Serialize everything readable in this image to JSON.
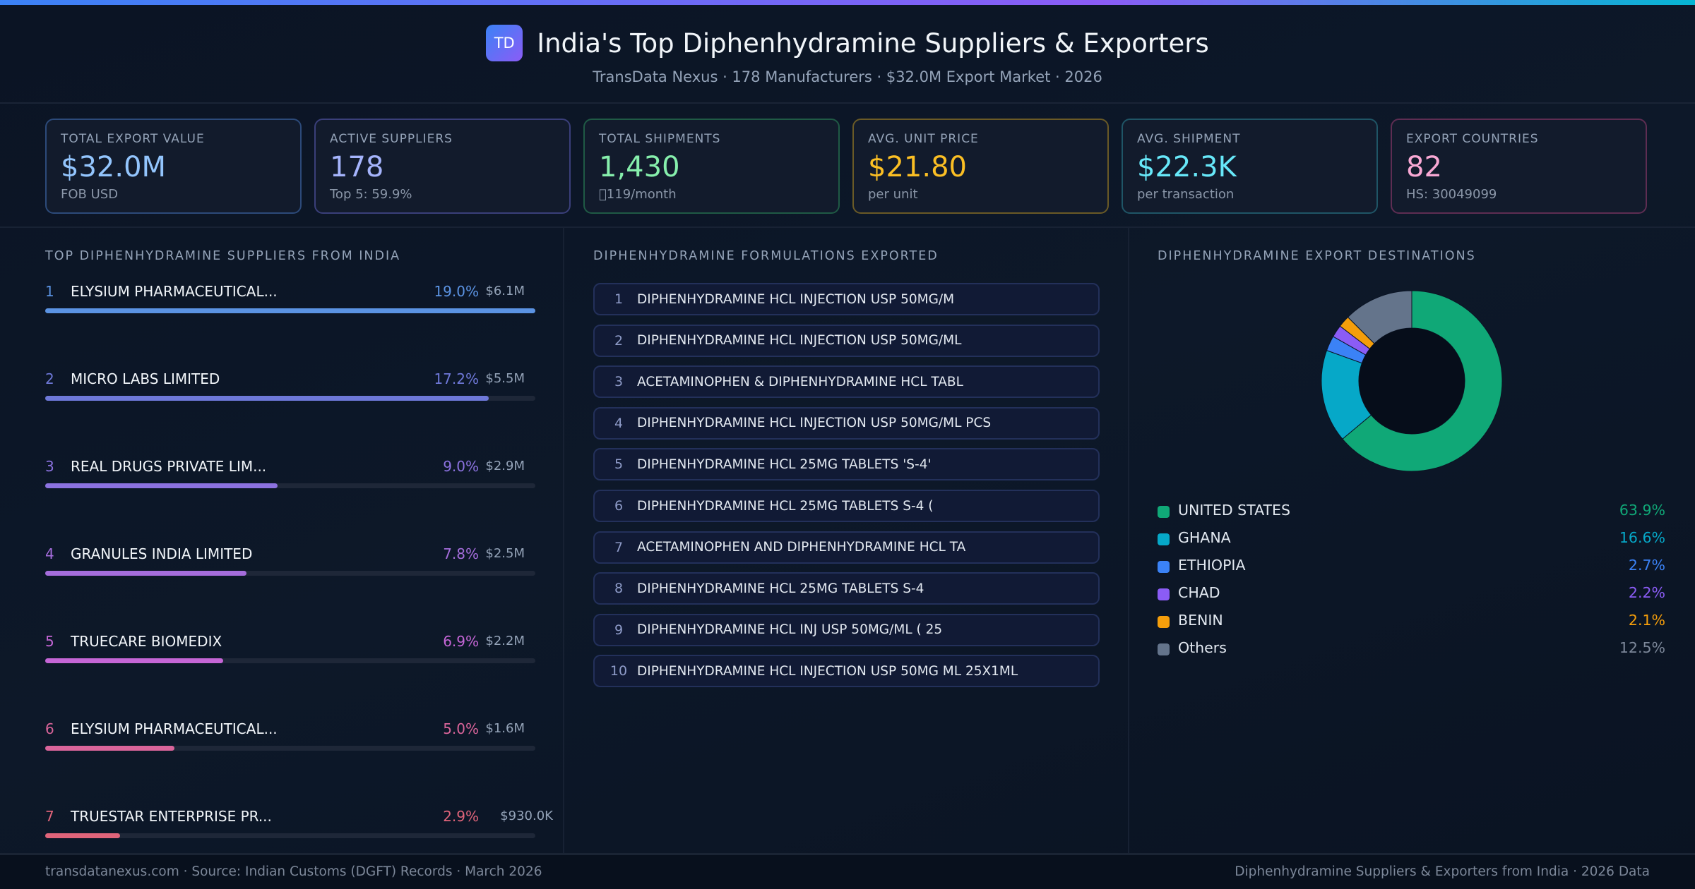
{
  "header": {
    "logo": "TD",
    "title": "India's Top Diphenhydramine Suppliers & Exporters",
    "subtitle": "TransData Nexus · 178 Manufacturers · $32.0M Export Market · 2026"
  },
  "stats": [
    {
      "label": "TOTAL EXPORT VALUE",
      "value": "$32.0M",
      "sub": "FOB USD",
      "border": "#2c4a7a",
      "color": "#93c5fd"
    },
    {
      "label": "ACTIVE SUPPLIERS",
      "value": "178",
      "sub": "Top 5: 59.9%",
      "border": "#3a3f7a",
      "color": "#a5b4fc"
    },
    {
      "label": "TOTAL SHIPMENTS",
      "value": "1,430",
      "sub": "\u0000119/month",
      "border": "#1f5a45",
      "color": "#86efac"
    },
    {
      "label": "AVG. UNIT PRICE",
      "value": "$21.80",
      "sub": "per unit",
      "border": "#6a5a26",
      "color": "#fbbf24"
    },
    {
      "label": "AVG. SHIPMENT",
      "value": "$22.3K",
      "sub": "per transaction",
      "border": "#1f5566",
      "color": "#67e8f9"
    },
    {
      "label": "EXPORT COUNTRIES",
      "value": "82",
      "sub": "HS: 30049099",
      "border": "#5e2d52",
      "color": "#f9a8d4"
    }
  ],
  "suppliers": {
    "title": "TOP DIPHENHYDRAMINE SUPPLIERS FROM INDIA",
    "items": [
      {
        "rank": "1",
        "name": "ELYSIUM PHARMACEUTICAL...",
        "share": "19.0%",
        "share_value": 19.0,
        "value": "$6.1M",
        "color": "#5b93e3"
      },
      {
        "rank": "2",
        "name": "MICRO LABS LIMITED",
        "share": "17.2%",
        "share_value": 17.2,
        "value": "$5.5M",
        "color": "#6e78d8"
      },
      {
        "rank": "3",
        "name": "REAL DRUGS PRIVATE LIM...",
        "share": "9.0%",
        "share_value": 9.0,
        "value": "$2.9M",
        "color": "#8c72e0"
      },
      {
        "rank": "4",
        "name": "GRANULES INDIA LIMITED",
        "share": "7.8%",
        "share_value": 7.8,
        "value": "$2.5M",
        "color": "#a56ddc"
      },
      {
        "rank": "5",
        "name": "TRUECARE BIOMEDIX",
        "share": "6.9%",
        "share_value": 6.9,
        "value": "$2.2M",
        "color": "#c566d6"
      },
      {
        "rank": "6",
        "name": "ELYSIUM PHARMACEUTICAL...",
        "share": "5.0%",
        "share_value": 5.0,
        "value": "$1.6M",
        "color": "#d9649a"
      },
      {
        "rank": "7",
        "name": "TRUESTAR ENTERPRISE PR...",
        "share": "2.9%",
        "share_value": 2.9,
        "value": "$930.0K",
        "color": "#e0647a"
      }
    ]
  },
  "formulations": {
    "title": "DIPHENHYDRAMINE FORMULATIONS EXPORTED",
    "items": [
      {
        "n": "1",
        "text": "DIPHENHYDRAMINE HCL INJECTION USP 50MG/M"
      },
      {
        "n": "2",
        "text": "DIPHENHYDRAMINE HCL INJECTION USP 50MG/ML"
      },
      {
        "n": "3",
        "text": "ACETAMINOPHEN & DIPHENHYDRAMINE HCL TABL"
      },
      {
        "n": "4",
        "text": "DIPHENHYDRAMINE HCL INJECTION USP 50MG/ML PCS"
      },
      {
        "n": "5",
        "text": "DIPHENHYDRAMINE HCL 25MG TABLETS 'S-4'"
      },
      {
        "n": "6",
        "text": "DIPHENHYDRAMINE HCL 25MG TABLETS S-4 ("
      },
      {
        "n": "7",
        "text": "ACETAMINOPHEN AND DIPHENHYDRAMINE HCL TA"
      },
      {
        "n": "8",
        "text": "DIPHENHYDRAMINE HCL 25MG TABLETS S-4"
      },
      {
        "n": "9",
        "text": "DIPHENHYDRAMINE HCL INJ USP 50MG/ML ( 25"
      },
      {
        "n": "10",
        "text": "DIPHENHYDRAMINE HCL INJECTION USP 50MG ML 25X1ML"
      }
    ]
  },
  "destinations": {
    "title": "DIPHENHYDRAMINE EXPORT DESTINATIONS"
  },
  "chart_data": {
    "type": "pie",
    "variant": "donut",
    "categories": [
      "UNITED STATES",
      "GHANA",
      "ETHIOPIA",
      "CHAD",
      "BENIN",
      "Others"
    ],
    "values": [
      63.9,
      16.6,
      2.7,
      2.2,
      2.1,
      12.5
    ],
    "labels": [
      "63.9%",
      "16.6%",
      "2.7%",
      "2.2%",
      "2.1%",
      "12.5%"
    ],
    "colors": [
      "#10a877",
      "#06a8c8",
      "#3b82f6",
      "#8b5cf6",
      "#f59e0b",
      "#64748b"
    ],
    "legend": "bottom"
  },
  "footer": {
    "left": "transdatanexus.com · Source: Indian Customs (DGFT) Records · March 2026",
    "right": "Diphenhydramine Suppliers & Exporters from India · 2026 Data"
  }
}
